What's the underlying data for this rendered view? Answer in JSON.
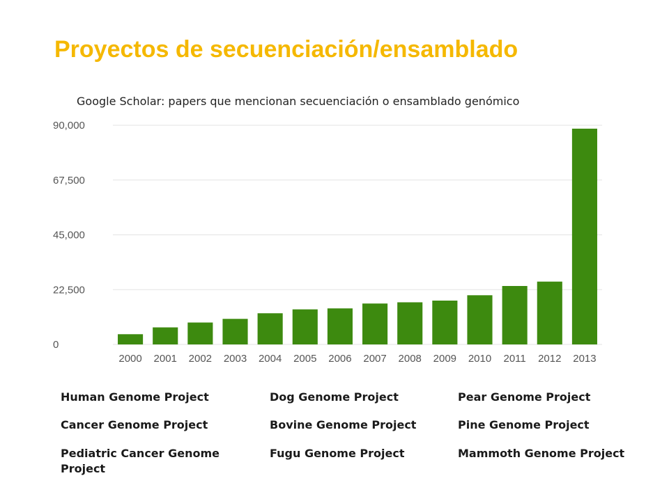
{
  "slide": {
    "title": "Proyectos de secuenciación/ensamblado"
  },
  "chart_data": {
    "type": "bar",
    "subtitle": "Google Scholar: papers que mencionan secuenciación o ensamblado genómico",
    "categories": [
      "2000",
      "2001",
      "2002",
      "2003",
      "2004",
      "2005",
      "2006",
      "2007",
      "2008",
      "2009",
      "2010",
      "2011",
      "2012",
      "2013"
    ],
    "values": [
      4200,
      7000,
      9000,
      10500,
      12800,
      14400,
      14800,
      16800,
      17300,
      18000,
      20200,
      24000,
      25800,
      88600
    ],
    "y_ticks": [
      0,
      22500,
      45000,
      67500,
      90000
    ],
    "y_tick_labels": [
      "0",
      "22,500",
      "45,000",
      "67,500",
      "90,000"
    ],
    "ylim": [
      0,
      90000
    ],
    "bar_color": "#3D8A0F",
    "grid": true,
    "grid_color": "#E3E3E3"
  },
  "projects": {
    "col1": [
      "Human Genome Project",
      "Cancer Genome Project",
      "Pediatric Cancer Genome Project"
    ],
    "col2": [
      "Dog Genome Project",
      "Bovine Genome Project",
      "Fugu Genome Project"
    ],
    "col3": [
      "Pear Genome Project",
      "Pine Genome Project",
      "Mammoth Genome Project"
    ]
  }
}
